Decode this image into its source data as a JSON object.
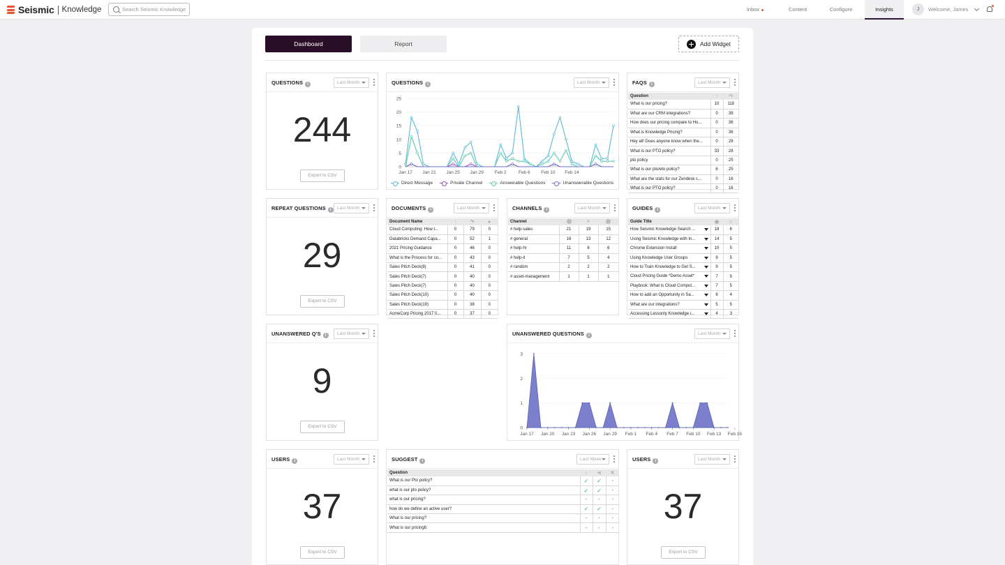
{
  "app": {
    "brand": "Seismic",
    "product": "Knowledge",
    "search_placeholder": "Search Seismic Knowledge",
    "nav": [
      {
        "label": "Inbox"
      },
      {
        "label": "Content"
      },
      {
        "label": "Configure"
      },
      {
        "label": "Insights",
        "active": true
      }
    ],
    "user_initial": "J",
    "user_greeting": "Welcome, James",
    "accent": "#2a0d26"
  },
  "toolbar": {
    "dashboard_label": "Dashboard",
    "report_label": "Report",
    "add_widget_label": "Add Widget"
  },
  "export_label": "Export to CSV",
  "widgets": {
    "questions_count": {
      "title": "QUESTIONS",
      "period": "Last Month",
      "value": "244"
    },
    "repeat_questions": {
      "title": "REPEAT QUESTIONS",
      "period": "Last Month",
      "value": "29"
    },
    "unanswered_count": {
      "title": "UNANSWERED Q'S",
      "period": "Last Month",
      "value": "9"
    },
    "users_1": {
      "title": "USERS",
      "period": "Last Month",
      "value": "37"
    },
    "users_2": {
      "title": "USERS",
      "period": "Last Month",
      "value": "37"
    },
    "questions_chart": {
      "title": "QUESTIONS",
      "period": "Last Month"
    },
    "unanswered_chart": {
      "title": "UNANSWERED QUESTIONS",
      "period": "Last Month"
    },
    "faqs": {
      "title": "FAQS",
      "period": "Last Month",
      "header": "Question",
      "rows": [
        [
          "What is our pricing?",
          "10",
          "118"
        ],
        [
          "What are our CRM integrations?",
          "0",
          "39"
        ],
        [
          "How does our pricing compare to Ho...",
          "0",
          "36"
        ],
        [
          "What is Knowledge Pricing?",
          "0",
          "36"
        ],
        [
          "Hey all! Does anyone know when the...",
          "0",
          "28"
        ],
        [
          "What is our PTO policy?",
          "33",
          "28"
        ],
        [
          "pto policy",
          "0",
          "25"
        ],
        [
          "What is our pto/eto policy?",
          "6",
          "25"
        ],
        [
          "What are the stats for our Zendesk c...",
          "0",
          "16"
        ],
        [
          "What is our PTO policy?",
          "0",
          "16"
        ]
      ]
    },
    "documents": {
      "title": "DOCUMENTS",
      "period": "Last Month",
      "header": "Document Name",
      "rows": [
        [
          "Cloud Computing: How t...",
          "0",
          "79",
          "0"
        ],
        [
          "Databricks Demand Capa...",
          "0",
          "52",
          "1"
        ],
        [
          "2021 Pricing Guidance",
          "0",
          "46",
          "0"
        ],
        [
          "What is the Process for co...",
          "0",
          "43",
          "0"
        ],
        [
          "Sales Pitch Deck(8)",
          "0",
          "41",
          "0"
        ],
        [
          "Sales Pitch Deck(7)",
          "0",
          "40",
          "0"
        ],
        [
          "Sales Pitch Deck(7)",
          "0",
          "40",
          "0"
        ],
        [
          "Sales Pitch Deck(10)",
          "0",
          "40",
          "0"
        ],
        [
          "Sales Pitch Deck(19)",
          "0",
          "38",
          "0"
        ],
        [
          "AcmeCorp Pricing 2017 0...",
          "0",
          "37",
          "0"
        ]
      ]
    },
    "channels": {
      "title": "CHANNELS",
      "period": "Last Month",
      "header": "Channel",
      "rows": [
        [
          "# help-sales",
          "21",
          "19",
          "15"
        ],
        [
          "# general",
          "16",
          "13",
          "12"
        ],
        [
          "# help-hr",
          "11",
          "6",
          "6"
        ],
        [
          "# help-it",
          "7",
          "5",
          "4"
        ],
        [
          "# random",
          "2",
          "2",
          "2"
        ],
        [
          "# asset-management",
          "1",
          "1",
          "1"
        ]
      ]
    },
    "guides": {
      "title": "GUIDES",
      "period": "Last Month",
      "header": "Guide Title",
      "rows": [
        [
          "How Seismic Knowledge Search ...",
          "18",
          "6"
        ],
        [
          "Using Seismic Knowledge with In...",
          "14",
          "5"
        ],
        [
          "Chrome Extension Install",
          "10",
          "5"
        ],
        [
          "Using Knowledge User Groups",
          "9",
          "5"
        ],
        [
          "How to Train Knowledge to Get S...",
          "9",
          "5"
        ],
        [
          "Cloud Pricing Guide *Demo Asset*",
          "7",
          "5"
        ],
        [
          "Playbook: What is Cloud Comput...",
          "7",
          "5"
        ],
        [
          "How to add an Opportunity in Sa...",
          "6",
          "4"
        ],
        [
          "What are our integrations?",
          "5",
          "5"
        ],
        [
          "Accessing Lessonly Knowledge i...",
          "4",
          "3"
        ]
      ]
    },
    "suggest": {
      "title": "SUGGEST",
      "period": "Last Week",
      "header": "Question",
      "rows": [
        {
          "q": "What is our Pto policy?",
          "a": "✓",
          "b": "✓",
          "c": "-"
        },
        {
          "q": "what is our pto policy?",
          "a": "✓",
          "b": "✓",
          "c": "-"
        },
        {
          "q": "what is our pricing?",
          "a": "-",
          "b": "-",
          "c": "-"
        },
        {
          "q": "how do we define an active user?",
          "a": "✓",
          "b": "✓",
          "c": "-"
        },
        {
          "q": "What is our pricing?",
          "a": "-",
          "b": "-",
          "c": "-"
        },
        {
          "q": "What is our pricingß",
          "a": "-",
          "b": "-",
          "c": "-"
        }
      ]
    }
  },
  "chart_data": [
    {
      "type": "line",
      "title": "QUESTIONS",
      "x_ticks": [
        "Jan 17",
        "Jan 21",
        "Jan 25",
        "Jan 29",
        "Feb 2",
        "Feb 6",
        "Feb 10",
        "Feb 14"
      ],
      "ylim": [
        0,
        25
      ],
      "y_ticks": [
        0,
        5,
        10,
        15,
        20,
        25
      ],
      "legend_position": "bottom",
      "series": [
        {
          "name": "Direct Message",
          "color": "#5bb8d4",
          "values": [
            1,
            18,
            13,
            1,
            0,
            0,
            0,
            0,
            5,
            1,
            7,
            9,
            1,
            0,
            0,
            0,
            8,
            3,
            5,
            22,
            3,
            1,
            0,
            2,
            4,
            12,
            18,
            10,
            2,
            1,
            0,
            0,
            8,
            3,
            3,
            15
          ]
        },
        {
          "name": "Private Channel",
          "color": "#a24ac2",
          "values": [
            0,
            1,
            0,
            0,
            0,
            0,
            0,
            0,
            1,
            0,
            0,
            1,
            0,
            0,
            0,
            0,
            0,
            0,
            1,
            0,
            0,
            0,
            0,
            0,
            0,
            1,
            0,
            0,
            0,
            0,
            0,
            0,
            1,
            0,
            0,
            0
          ]
        },
        {
          "name": "Answerable Questions",
          "color": "#5ec7b0",
          "values": [
            0,
            11,
            5,
            0,
            0,
            0,
            0,
            0,
            3,
            0,
            4,
            5,
            0,
            0,
            0,
            0,
            5,
            2,
            3,
            2,
            2,
            1,
            0,
            1,
            2,
            5,
            2,
            6,
            1,
            0,
            0,
            0,
            4,
            2,
            2,
            2
          ]
        },
        {
          "name": "Unanswerable Questions",
          "color": "#6b6fc4",
          "values": [
            0,
            1,
            0,
            0,
            0,
            0,
            0,
            0,
            0,
            0,
            0,
            0,
            0,
            0,
            0,
            0,
            0,
            0,
            1,
            0,
            0,
            0,
            0,
            0,
            0,
            1,
            0,
            0,
            0,
            0,
            0,
            0,
            1,
            0,
            0,
            0
          ]
        }
      ]
    },
    {
      "type": "area",
      "title": "UNANSWERED QUESTIONS",
      "x_ticks": [
        "Jan 17",
        "Jan 20",
        "Jan 23",
        "Jan 26",
        "Jan 29",
        "Feb 1",
        "Feb 4",
        "Feb 7",
        "Feb 10",
        "Feb 13",
        "Feb 16"
      ],
      "ylim": [
        0,
        3
      ],
      "y_ticks": [
        0,
        1,
        2,
        3
      ],
      "series": [
        {
          "name": "Unanswered",
          "color": "#7b7fcc",
          "values": [
            0,
            3,
            0,
            0,
            0,
            0,
            0,
            0,
            1,
            1,
            0,
            0,
            1,
            0,
            0,
            0,
            0,
            0,
            0,
            0,
            0,
            1,
            0,
            0,
            0,
            1,
            1,
            0,
            0,
            0
          ]
        }
      ]
    }
  ]
}
